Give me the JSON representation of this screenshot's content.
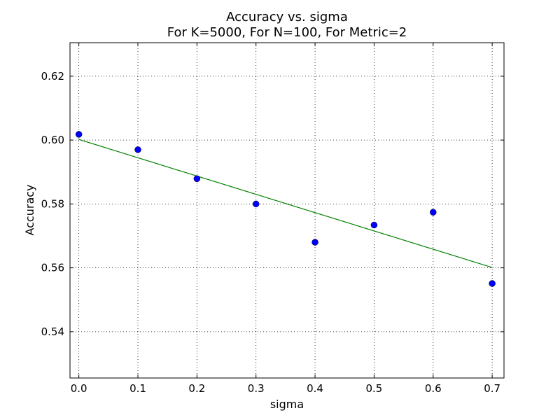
{
  "chart_data": {
    "type": "scatter",
    "title": "Accuracy vs. sigma",
    "subtitle": "For K=5000, For N=100, For Metric=2",
    "xlabel": "sigma",
    "ylabel": "Accuracy",
    "xlim": [
      -0.015,
      0.72
    ],
    "ylim": [
      0.5255,
      0.6305
    ],
    "xticks": [
      0.0,
      0.1,
      0.2,
      0.3,
      0.4,
      0.5,
      0.6,
      0.7
    ],
    "xtick_labels": [
      "0.0",
      "0.1",
      "0.2",
      "0.3",
      "0.4",
      "0.5",
      "0.6",
      "0.7"
    ],
    "yticks": [
      0.54,
      0.56,
      0.58,
      0.6,
      0.62
    ],
    "ytick_labels": [
      "0.54",
      "0.56",
      "0.58",
      "0.60",
      "0.62"
    ],
    "grid": true,
    "series": [
      {
        "kind": "points",
        "color": "#0000ff",
        "x": [
          0.0,
          0.1,
          0.2,
          0.3,
          0.4,
          0.5,
          0.6,
          0.7
        ],
        "y": [
          0.6018,
          0.597,
          0.5879,
          0.58,
          0.568,
          0.5734,
          0.5774,
          0.5551
        ]
      },
      {
        "kind": "fit-line",
        "color": "#008000",
        "x": [
          0.0,
          0.7
        ],
        "y": [
          0.6002,
          0.5601
        ]
      }
    ]
  }
}
